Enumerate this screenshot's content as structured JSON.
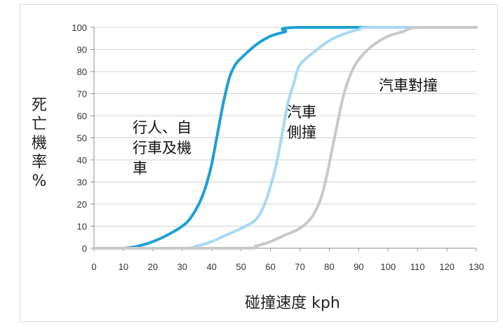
{
  "chart_data": {
    "type": "line",
    "title": "",
    "xlabel": "碰撞速度 kph",
    "ylabel": "死亡機率%",
    "xlim": [
      0,
      130
    ],
    "ylim": [
      0,
      100
    ],
    "x_ticks": [
      0,
      10,
      20,
      30,
      40,
      50,
      60,
      70,
      80,
      90,
      100,
      110,
      120,
      130
    ],
    "y_ticks": [
      0,
      10,
      20,
      30,
      40,
      50,
      60,
      70,
      80,
      90,
      100
    ],
    "grid": "horizontal",
    "legend": "none",
    "series": [
      {
        "label": "行人、自行車及機車",
        "label_lines": [
          "行人、自",
          "行車及機",
          "車"
        ],
        "color": "#1e9fd6",
        "points": [
          [
            0,
            0
          ],
          [
            10,
            0
          ],
          [
            15,
            1
          ],
          [
            20,
            3
          ],
          [
            25,
            6
          ],
          [
            30,
            10
          ],
          [
            33,
            14
          ],
          [
            36,
            21
          ],
          [
            38,
            28
          ],
          [
            40,
            38
          ],
          [
            42,
            52
          ],
          [
            44,
            66
          ],
          [
            46,
            77
          ],
          [
            48,
            83
          ],
          [
            50,
            86
          ],
          [
            55,
            92
          ],
          [
            60,
            96
          ],
          [
            65,
            98
          ],
          [
            70,
            100
          ],
          [
            130,
            100
          ]
        ]
      },
      {
        "label": "汽車側撞",
        "label_lines": [
          "汽車",
          "側撞"
        ],
        "color": "#a8d8f4",
        "points": [
          [
            0,
            0
          ],
          [
            30,
            0
          ],
          [
            35,
            1
          ],
          [
            40,
            3
          ],
          [
            45,
            6
          ],
          [
            50,
            9
          ],
          [
            55,
            13
          ],
          [
            58,
            20
          ],
          [
            60,
            28
          ],
          [
            62,
            38
          ],
          [
            64,
            52
          ],
          [
            66,
            66
          ],
          [
            68,
            75
          ],
          [
            70,
            83
          ],
          [
            75,
            89
          ],
          [
            80,
            94
          ],
          [
            85,
            97
          ],
          [
            90,
            99
          ],
          [
            95,
            100
          ],
          [
            130,
            100
          ]
        ]
      },
      {
        "label": "汽車對撞",
        "label_lines": [
          "汽車對撞"
        ],
        "color": "#c8c8c8",
        "points": [
          [
            0,
            0
          ],
          [
            50,
            0
          ],
          [
            55,
            1
          ],
          [
            60,
            3
          ],
          [
            65,
            6
          ],
          [
            70,
            9
          ],
          [
            74,
            14
          ],
          [
            77,
            22
          ],
          [
            79,
            32
          ],
          [
            81,
            45
          ],
          [
            83,
            58
          ],
          [
            85,
            70
          ],
          [
            88,
            81
          ],
          [
            91,
            87
          ],
          [
            95,
            92
          ],
          [
            100,
            96
          ],
          [
            105,
            98
          ],
          [
            110,
            100
          ],
          [
            130,
            100
          ]
        ]
      }
    ]
  }
}
